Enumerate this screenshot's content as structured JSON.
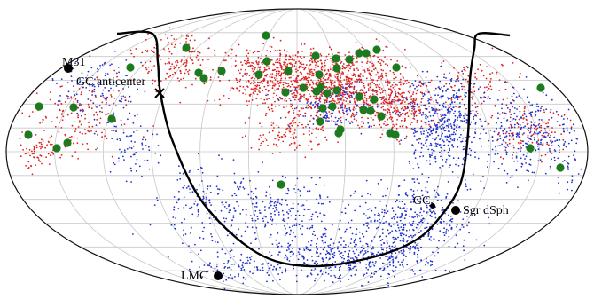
{
  "chart_data": {
    "type": "scatter",
    "projection": "Aitoff-Hammer all-sky",
    "grid": true,
    "colors": {
      "red_points": "#dd2222",
      "blue_points": "#2233cc",
      "green_points": "#1e7a1e",
      "marker": "#000000",
      "track": "#000000"
    },
    "series": [
      {
        "color": "red",
        "region": "northern sky, concentrated toward upper middle-left"
      },
      {
        "color": "blue",
        "region": "right half and southern sky, along the black track"
      },
      {
        "color": "green",
        "marker": "large filled circle",
        "count": 44
      }
    ],
    "annotations": [
      {
        "text": "M31",
        "symbol": "filled-circle"
      },
      {
        "text": "GC anticenter",
        "symbol": "cross"
      },
      {
        "text": "GC",
        "symbol": "small-filled-circle"
      },
      {
        "text": "Sgr dSph",
        "symbol": "filled-circle"
      },
      {
        "text": "LMC",
        "symbol": "filled-circle"
      }
    ]
  }
}
